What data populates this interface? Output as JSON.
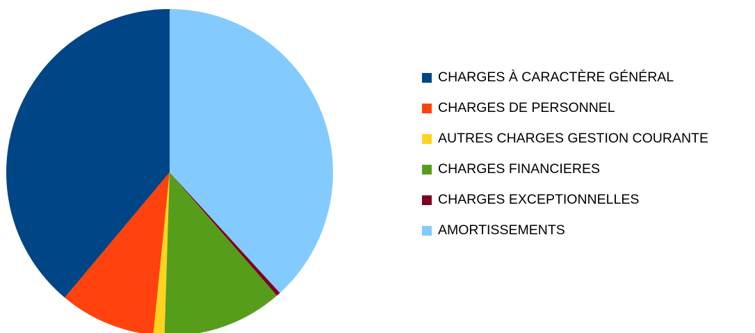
{
  "chart_data": {
    "type": "pie",
    "categories": [
      "CHARGES À CARACTÈRE GÉNÉRAL",
      "CHARGES DE PERSONNEL",
      "AUTRES CHARGES GESTION COURANTE",
      "CHARGES FINANCIERES",
      "CHARGES EXCEPTIONNELLES",
      "AMORTISSEMENTS"
    ],
    "values": [
      38.9,
      9.5,
      1.1,
      11.9,
      0.4,
      38.2
    ],
    "colors": [
      "#004586",
      "#ff420e",
      "#ffd320",
      "#579d1c",
      "#7e0021",
      "#83caff"
    ],
    "legend": "right"
  }
}
